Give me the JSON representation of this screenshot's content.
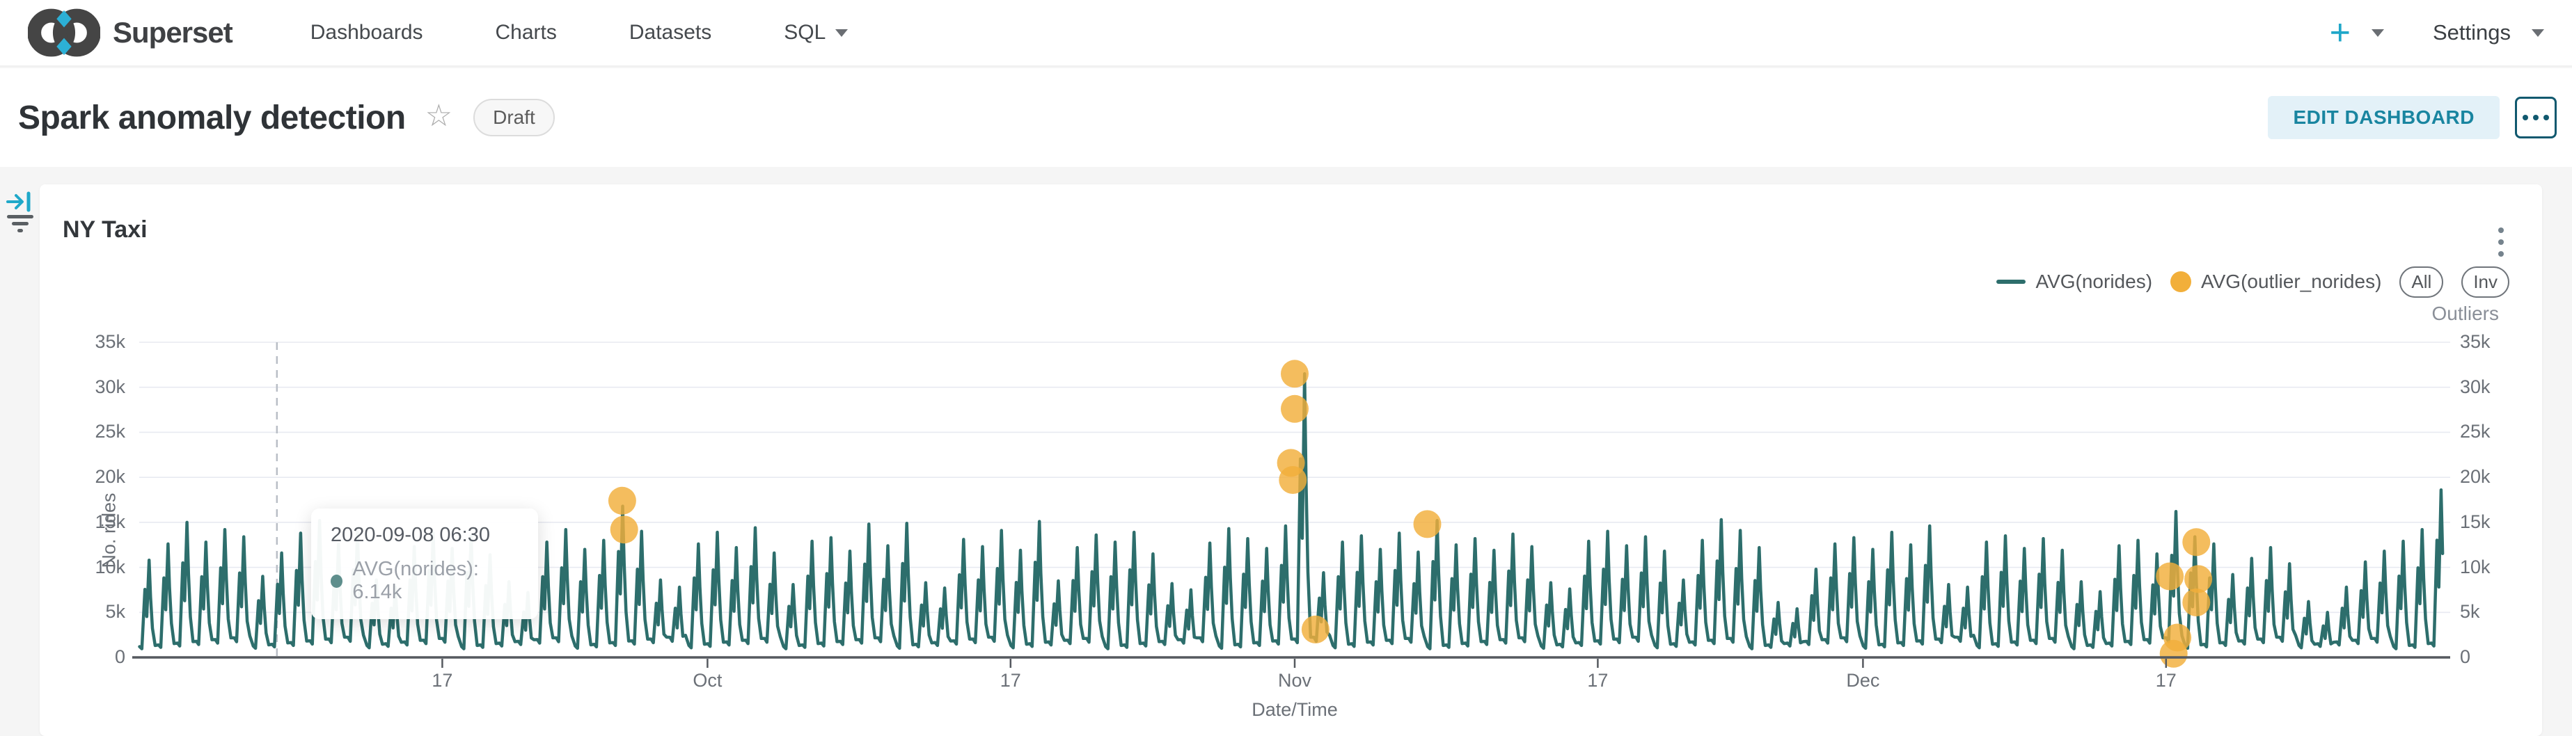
{
  "navbar": {
    "brand": "Superset",
    "items": [
      {
        "label": "Dashboards",
        "caret": false
      },
      {
        "label": "Charts",
        "caret": false
      },
      {
        "label": "Datasets",
        "caret": false
      },
      {
        "label": "SQL",
        "caret": true
      }
    ],
    "plus_label": "+",
    "settings_label": "Settings"
  },
  "header": {
    "title": "Spark anomaly detection",
    "star_icon": "☆",
    "badge": "Draft",
    "edit_button": "EDIT DASHBOARD"
  },
  "panel": {
    "title": "NY Taxi"
  },
  "legend": {
    "entries": [
      {
        "label": "AVG(norides)",
        "swatch": "line",
        "color": "#2D6E6C"
      },
      {
        "label": "AVG(outlier_norides)",
        "swatch": "dot",
        "color": "#F2AF3A"
      }
    ],
    "buttons": [
      "All",
      "Inv"
    ],
    "outliers_label": "Outliers"
  },
  "tooltip": {
    "date": "2020-09-08 06:30",
    "series": "AVG(norides): 6.14k",
    "dot_color": "#5E8E8C"
  },
  "colors": {
    "accent": "#20A7C9",
    "line": "#2D6E6C",
    "outlier": "#F2AF3A",
    "grid": "#E8EAF1",
    "axis": "#55595F",
    "crosshair": "#B9BEC6"
  },
  "chart_data": {
    "type": "line",
    "title": "NY Taxi",
    "xlabel": "Date/Time",
    "left_axis_title": "No. rides",
    "right_axis_title": "Outliers",
    "x_range": [
      "2020-09-01",
      "2020-12-31"
    ],
    "ylim": [
      0,
      35000
    ],
    "y_ticks": [
      {
        "label": "0",
        "value": 0
      },
      {
        "label": "5k",
        "value": 5
      },
      {
        "label": "10k",
        "value": 10
      },
      {
        "label": "15k",
        "value": 15
      },
      {
        "label": "20k",
        "value": 20
      },
      {
        "label": "25k",
        "value": 25
      },
      {
        "label": "30k",
        "value": 30
      },
      {
        "label": "35k",
        "value": 35
      }
    ],
    "x_ticks": [
      {
        "label": "17",
        "day": 16
      },
      {
        "label": "Oct",
        "day": 30
      },
      {
        "label": "17",
        "day": 46
      },
      {
        "label": "Nov",
        "day": 61
      },
      {
        "label": "17",
        "day": 77
      },
      {
        "label": "Dec",
        "day": 91
      },
      {
        "label": "17",
        "day": 107
      }
    ],
    "crosshair_day": 7.27,
    "hover_point": {
      "date": "2020-09-08 06:30",
      "value_k": 6.14
    },
    "series": [
      {
        "name": "AVG(norides)",
        "kind": "line",
        "color": "#2D6E6C",
        "days": 122,
        "valley_range_k": [
          1.2,
          2.3
        ],
        "daily_peaks_k": [
          10.8,
          12.6,
          15.0,
          12.8,
          14.2,
          13.4,
          9.0,
          11.6,
          13.8,
          15.2,
          12.6,
          13.9,
          8.6,
          7.8,
          12.3,
          13.8,
          12.1,
          13.5,
          11.4,
          8.4,
          7.2,
          12.8,
          14.2,
          12.0,
          13.0,
          16.8,
          14.0,
          8.6,
          7.8,
          12.6,
          13.9,
          12.2,
          14.4,
          11.6,
          8.1,
          12.9,
          13.3,
          11.8,
          14.8,
          12.4,
          14.9,
          8.3,
          7.7,
          13.1,
          12.3,
          14.1,
          11.9,
          15.1,
          8.5,
          12.2,
          13.6,
          12.8,
          13.9,
          11.5,
          8.2,
          7.5,
          12.7,
          14.3,
          13.2,
          12.1,
          14.6,
          31.5,
          9.4,
          12.8,
          13.5,
          12.0,
          13.8,
          11.7,
          15.2,
          12.5,
          13.2,
          11.9,
          13.7,
          12.3,
          8.3,
          7.6,
          12.9,
          14.0,
          12.4,
          13.4,
          11.8,
          8.6,
          13.0,
          15.3,
          14.1,
          12.2,
          6.1,
          5.4,
          9.8,
          12.6,
          13.3,
          12.0,
          13.9,
          12.5,
          14.6,
          8.1,
          7.8,
          12.8,
          13.5,
          12.1,
          13.2,
          11.9,
          8.4,
          7.3,
          12.4,
          13.0,
          11.5,
          16.2,
          13.4,
          12.6,
          9.2,
          11.0,
          12.2,
          10.4,
          6.2,
          5.0,
          7.8,
          10.6,
          11.8,
          12.9,
          14.2,
          18.6
        ]
      },
      {
        "name": "AVG(outlier_norides)",
        "kind": "scatter",
        "color": "#F2AF3A",
        "points": [
          {
            "day": 25.5,
            "value_k": 17.4
          },
          {
            "day": 25.6,
            "value_k": 14.2
          },
          {
            "day": 61.0,
            "value_k": 31.5
          },
          {
            "day": 61.0,
            "value_k": 27.6
          },
          {
            "day": 60.8,
            "value_k": 21.6
          },
          {
            "day": 60.9,
            "value_k": 19.7
          },
          {
            "day": 62.1,
            "value_k": 3.1
          },
          {
            "day": 68.0,
            "value_k": 14.8
          },
          {
            "day": 107.2,
            "value_k": 9.0
          },
          {
            "day": 108.6,
            "value_k": 12.8
          },
          {
            "day": 108.7,
            "value_k": 8.7
          },
          {
            "day": 108.6,
            "value_k": 6.1
          },
          {
            "day": 107.6,
            "value_k": 2.2
          },
          {
            "day": 107.4,
            "value_k": 0.4
          }
        ]
      }
    ]
  }
}
